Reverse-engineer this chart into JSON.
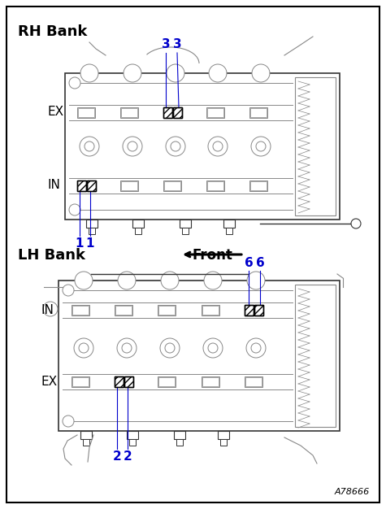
{
  "bg_color": "#ffffff",
  "gc": "#888888",
  "dc": "#333333",
  "bc": "#000000",
  "blue": "#0000cc",
  "title_rh": "RH Bank",
  "title_lh": "LH Bank",
  "front_label": "Front",
  "label_ex_rh": "EX",
  "label_in_rh": "IN",
  "label_in_lh": "IN",
  "label_ex_lh": "EX",
  "ref_code": "A78666",
  "fig_width": 4.75,
  "fig_height": 6.26,
  "dpi": 100
}
